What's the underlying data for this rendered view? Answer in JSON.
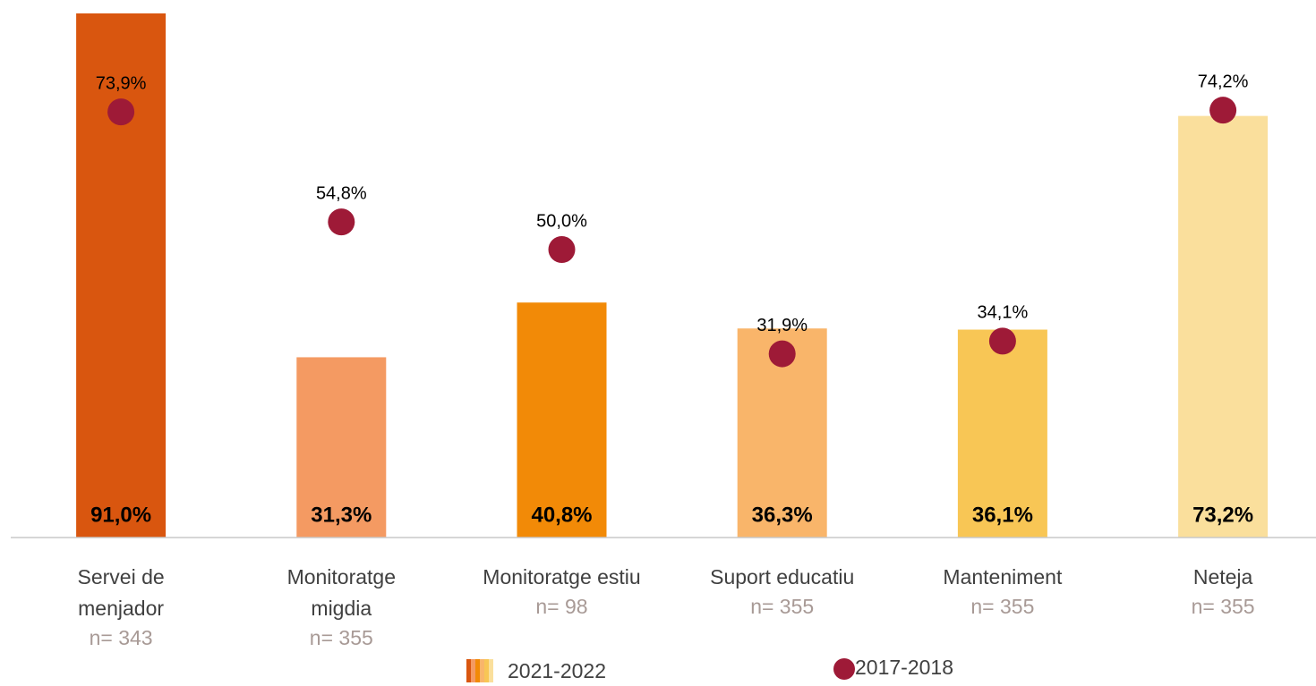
{
  "chart_data": {
    "type": "bar",
    "categories": [
      [
        "Servei de",
        "menjador"
      ],
      [
        "Monitoratge",
        "migdia"
      ],
      [
        "Monitoratge estiu"
      ],
      [
        "Suport educatiu"
      ],
      [
        "Manteniment"
      ],
      [
        "Neteja"
      ]
    ],
    "n_labels": [
      "n= 343",
      "n= 355",
      "n= 98",
      "n= 355",
      "n= 355",
      "n= 355"
    ],
    "ylim": [
      0,
      91
    ],
    "series": [
      {
        "name": "2021-2022",
        "type": "bar",
        "colors": [
          "#d9560f",
          "#f49a62",
          "#f28a07",
          "#f9b56a",
          "#f8c655",
          "#fadf9c"
        ],
        "values": [
          91.0,
          31.3,
          40.8,
          36.3,
          36.1,
          73.2
        ],
        "value_labels": [
          "91,0%",
          "31,3%",
          "40,8%",
          "36,3%",
          "36,1%",
          "73,2%"
        ]
      },
      {
        "name": "2017-2018",
        "type": "dot",
        "color": "#9e1a37",
        "values": [
          73.9,
          54.8,
          50.0,
          31.9,
          34.1,
          74.2
        ],
        "value_labels": [
          "73,9%",
          "54,8%",
          "50,0%",
          "31,9%",
          "34,1%",
          "74,2%"
        ]
      }
    ]
  }
}
